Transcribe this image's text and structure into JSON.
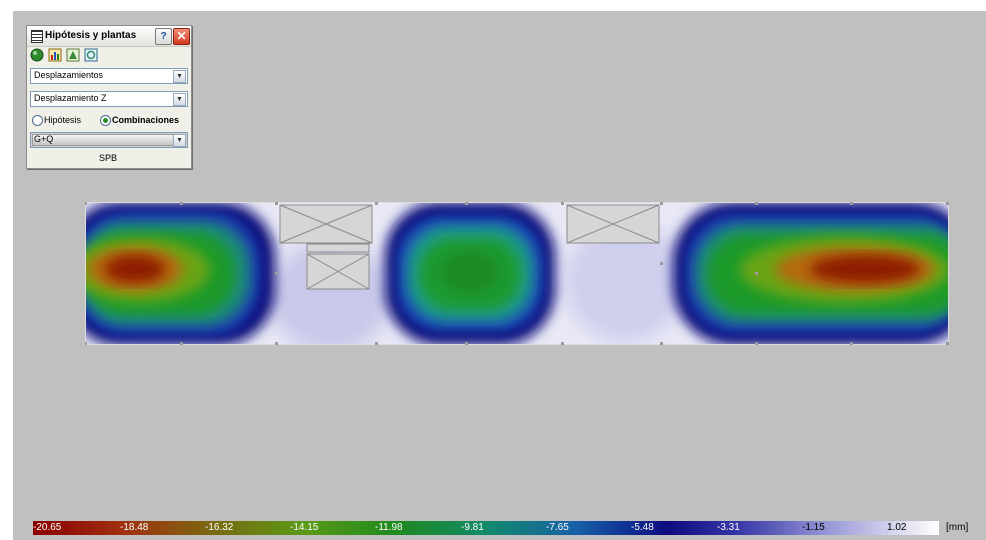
{
  "panel": {
    "title": "Hipótesis y plantas",
    "help_label": "?",
    "close_label": "✕",
    "toolbar_icons": [
      "sphere-icon",
      "chart-icon",
      "building-icon",
      "plan-icon"
    ],
    "result_type": {
      "value": "Desplazamientos"
    },
    "component": {
      "value": "Desplazamiento Z"
    },
    "radio_hipotesis": {
      "label": "Hipótesis",
      "selected": false
    },
    "radio_combinaciones": {
      "label": "Combinaciones",
      "selected": true
    },
    "combination": {
      "value": "G+Q"
    },
    "footer": "SPB"
  },
  "legend": {
    "ticks": [
      "-20.65",
      "-18.48",
      "-16.32",
      "-14.15",
      "-11.98",
      "-9.81",
      "-7.65",
      "-5.48",
      "-3.31",
      "-1.15",
      "1.02"
    ],
    "unit": "[mm]"
  },
  "colors": {
    "viewport_bg": "#c0c0c0",
    "max_negative": "#8b0000",
    "mid": "#1a8a1a",
    "low": "#0a0a80",
    "zero": "#ffffff"
  }
}
